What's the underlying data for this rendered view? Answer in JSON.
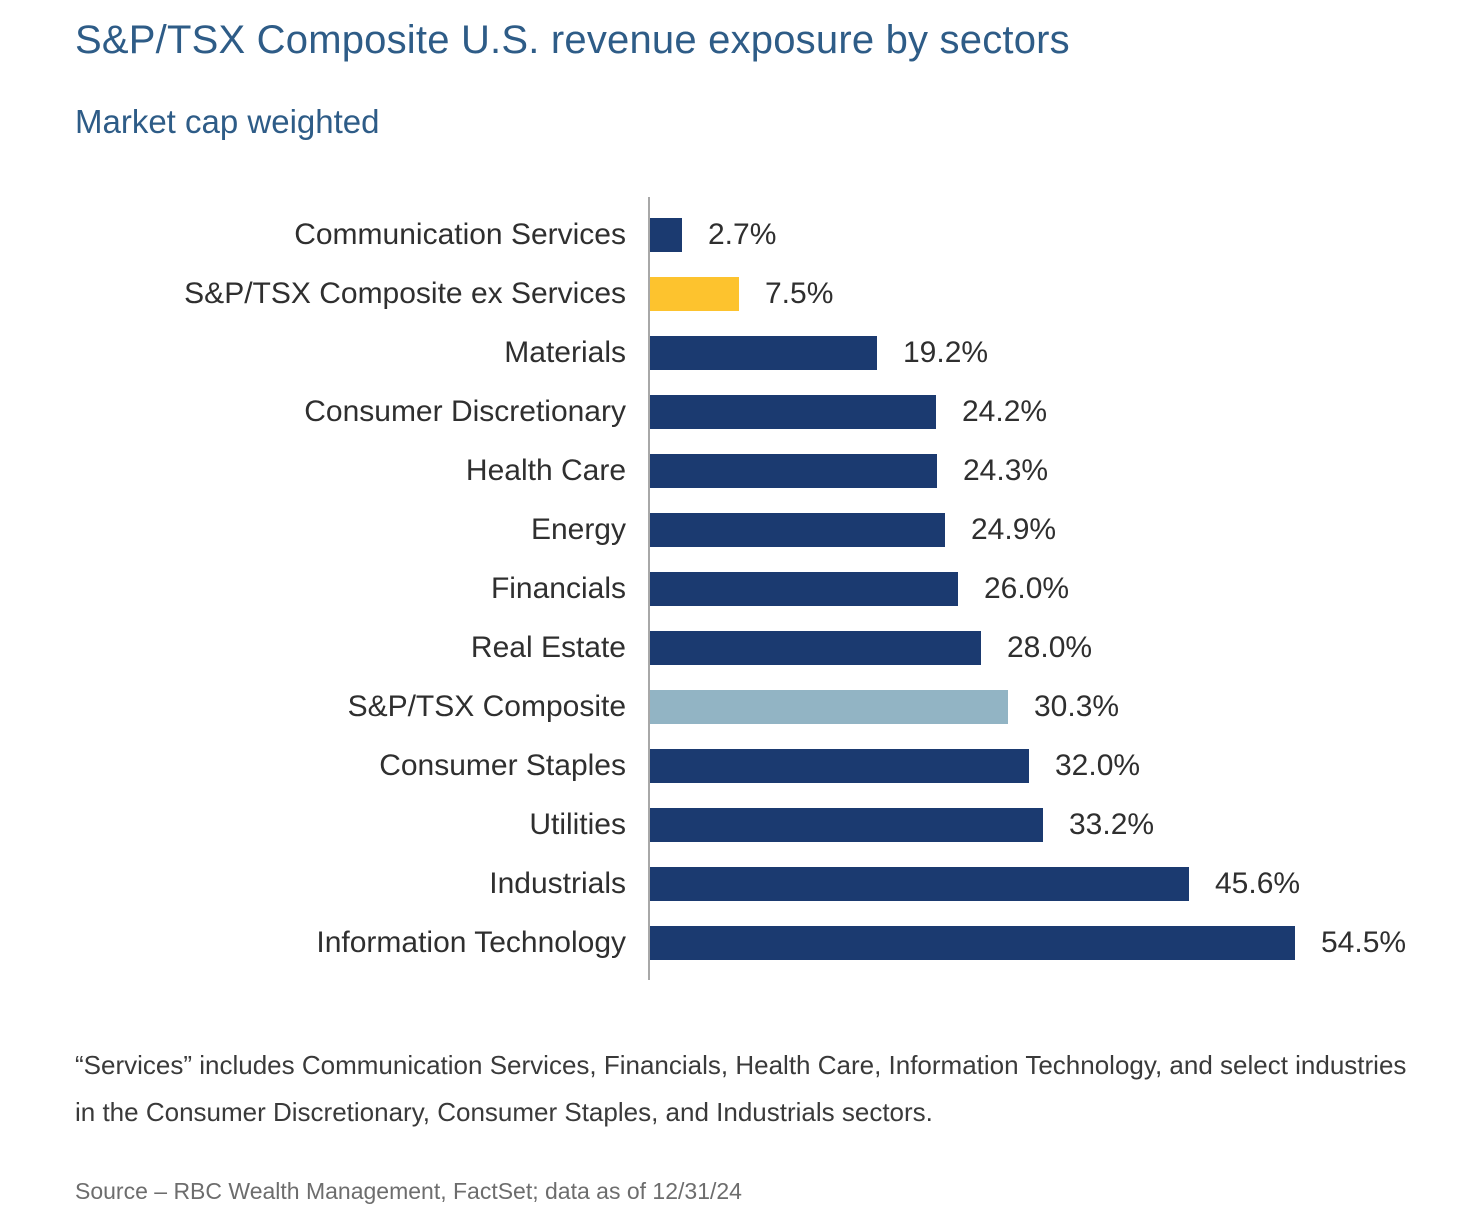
{
  "header": {
    "title": "S&P/TSX Composite U.S. revenue exposure by sectors",
    "subtitle": "Market cap weighted"
  },
  "colors": {
    "navy": "#1b3a70",
    "gold": "#fdc32e",
    "lightblue": "#92b4c4",
    "title_blue": "#2e5c87",
    "label_text": "#2f2f2f",
    "axis_gray": "#a8a8a8",
    "footnote_text": "#3a3a3a",
    "source_text": "#6d6d6d"
  },
  "chart_data": {
    "type": "bar",
    "orientation": "horizontal",
    "title": "S&P/TSX Composite U.S. revenue exposure by sectors",
    "subtitle": "Market cap weighted",
    "xlabel": "",
    "ylabel": "",
    "xlim": [
      0,
      57
    ],
    "grid": false,
    "legend": false,
    "value_suffix": "%",
    "categories": [
      "Communication Services",
      "S&P/TSX Composite ex Services",
      "Materials",
      "Consumer Discretionary",
      "Health Care",
      "Energy",
      "Financials",
      "Real Estate",
      "S&P/TSX Composite",
      "Consumer Staples",
      "Utilities",
      "Industrials",
      "Information Technology"
    ],
    "values": [
      2.7,
      7.5,
      19.2,
      24.2,
      24.3,
      24.9,
      26.0,
      28.0,
      30.3,
      32.0,
      33.2,
      45.6,
      54.5
    ],
    "value_labels": [
      "2.7%",
      "7.5%",
      "19.2%",
      "24.2%",
      "24.3%",
      "24.9%",
      "26.0%",
      "28.0%",
      "30.3%",
      "32.0%",
      "33.2%",
      "45.6%",
      "54.5%"
    ],
    "bar_color_keys": [
      "navy",
      "gold",
      "navy",
      "navy",
      "navy",
      "navy",
      "navy",
      "navy",
      "lightblue",
      "navy",
      "navy",
      "navy",
      "navy"
    ]
  },
  "footnote": {
    "text": "“Services” includes Communication Services, Financials, Health Care, Information Technology, and select industries in the Consumer Discretionary, Consumer Staples, and Industrials sectors."
  },
  "source": {
    "text": "Source – RBC Wealth Management, FactSet; data as of 12/31/24"
  }
}
